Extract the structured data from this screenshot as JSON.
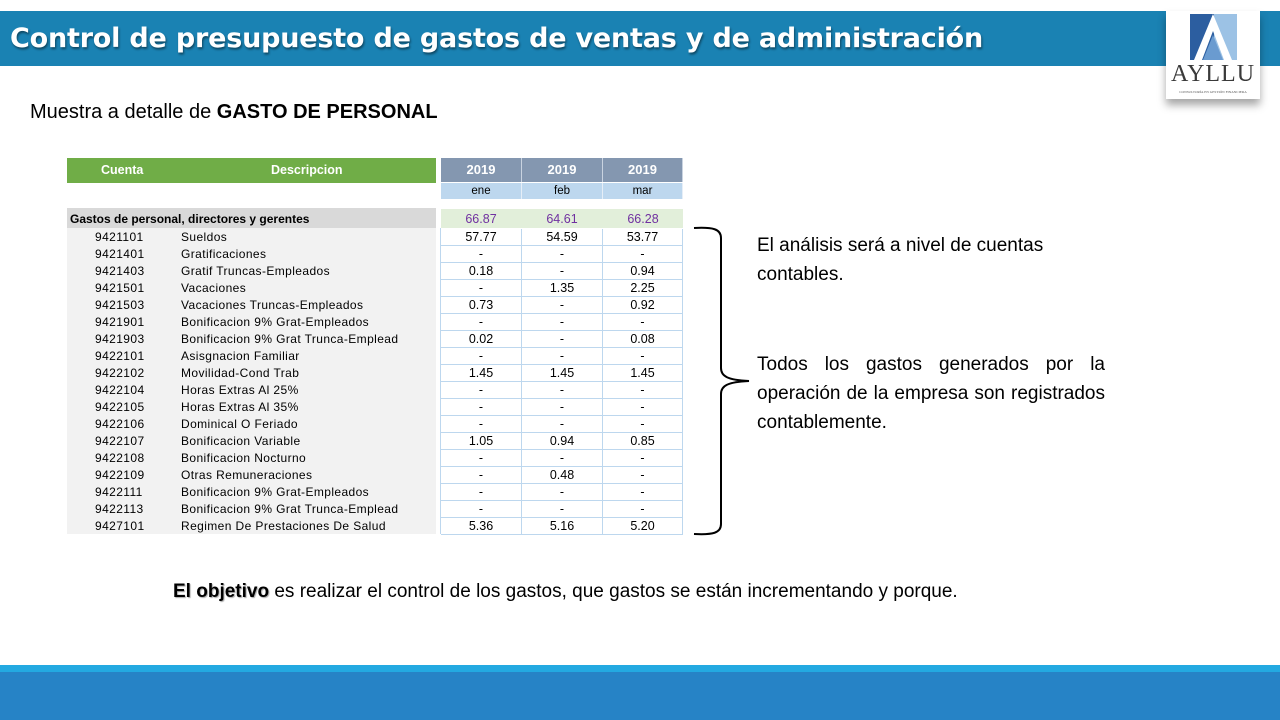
{
  "slide": {
    "title": "Control de presupuesto de gastos de ventas y de administración",
    "subtitle_prefix": "Muestra a detalle de ",
    "subtitle_bold": "GASTO DE PERSONAL",
    "logo": {
      "icon": "ayllu-a-logo-icon",
      "word": "AYLLU",
      "tagline": "CONSULTORÍA EN GESTIÓN FINANCIERA"
    },
    "colors": {
      "title_bar": "#1a82b3",
      "header_green": "#70ad47",
      "header_year": "#8497b0",
      "header_month": "#bdd7ee",
      "group_values_bg": "#e2efda",
      "group_values_text": "#7030a0",
      "footer_light": "#23a9e1",
      "footer_dark": "#2683c6"
    }
  },
  "table": {
    "headers": {
      "cuenta": "Cuenta",
      "descripcion": "Descripcion",
      "periods": [
        {
          "year": "2019",
          "month": "ene"
        },
        {
          "year": "2019",
          "month": "feb"
        },
        {
          "year": "2019",
          "month": "mar"
        }
      ]
    },
    "group": {
      "label": "Gastos de personal, directores y gerentes",
      "values": [
        "66.87",
        "64.61",
        "66.28"
      ]
    },
    "rows": [
      {
        "cuenta": "9421101",
        "descripcion": "Sueldos",
        "values": [
          "57.77",
          "54.59",
          "53.77"
        ]
      },
      {
        "cuenta": "9421401",
        "descripcion": "Gratificaciones",
        "values": [
          "-",
          "-",
          "-"
        ]
      },
      {
        "cuenta": "9421403",
        "descripcion": "Gratif Truncas-Empleados",
        "values": [
          "0.18",
          "-",
          "0.94"
        ]
      },
      {
        "cuenta": "9421501",
        "descripcion": "Vacaciones",
        "values": [
          "-",
          "1.35",
          "2.25"
        ]
      },
      {
        "cuenta": "9421503",
        "descripcion": "Vacaciones Truncas-Empleados",
        "values": [
          "0.73",
          "-",
          "0.92"
        ]
      },
      {
        "cuenta": "9421901",
        "descripcion": "Bonificacion 9% Grat-Empleados",
        "values": [
          "-",
          "-",
          "-"
        ]
      },
      {
        "cuenta": "9421903",
        "descripcion": "Bonificacion 9% Grat Trunca-Emplead",
        "values": [
          "0.02",
          "-",
          "0.08"
        ]
      },
      {
        "cuenta": "9422101",
        "descripcion": "Asisgnacion Familiar",
        "values": [
          "-",
          "-",
          "-"
        ]
      },
      {
        "cuenta": "9422102",
        "descripcion": "Movilidad-Cond Trab",
        "values": [
          "1.45",
          "1.45",
          "1.45"
        ]
      },
      {
        "cuenta": "9422104",
        "descripcion": "Horas Extras Al 25%",
        "values": [
          "-",
          "-",
          "-"
        ]
      },
      {
        "cuenta": "9422105",
        "descripcion": "Horas Extras Al 35%",
        "values": [
          "-",
          "-",
          "-"
        ]
      },
      {
        "cuenta": "9422106",
        "descripcion": "Dominical O Feriado",
        "values": [
          "-",
          "-",
          "-"
        ]
      },
      {
        "cuenta": "9422107",
        "descripcion": "Bonificacion Variable",
        "values": [
          "1.05",
          "0.94",
          "0.85"
        ]
      },
      {
        "cuenta": "9422108",
        "descripcion": "Bonificacion Nocturno",
        "values": [
          "-",
          "-",
          "-"
        ]
      },
      {
        "cuenta": "9422109",
        "descripcion": "Otras Remuneraciones",
        "values": [
          "-",
          "0.48",
          "-"
        ]
      },
      {
        "cuenta": "9422111",
        "descripcion": "Bonificacion 9% Grat-Empleados",
        "values": [
          "-",
          "-",
          "-"
        ]
      },
      {
        "cuenta": "9422113",
        "descripcion": "Bonificacion 9% Grat Trunca-Emplead",
        "values": [
          "-",
          "-",
          "-"
        ]
      },
      {
        "cuenta": "9427101",
        "descripcion": "Regimen De Prestaciones De Salud",
        "values": [
          "5.36",
          "5.16",
          "5.20"
        ]
      }
    ]
  },
  "notes": {
    "bracket_icon": "curly-brace-icon",
    "note_1": "El análisis será a nivel de cuentas contables.",
    "note_2": "Todos los gastos  generados por la operación de la empresa son registrados contablemente."
  },
  "objective": {
    "bold": "El objetivo",
    "rest": " es realizar el control de los gastos, que gastos se están incrementando y porque."
  }
}
